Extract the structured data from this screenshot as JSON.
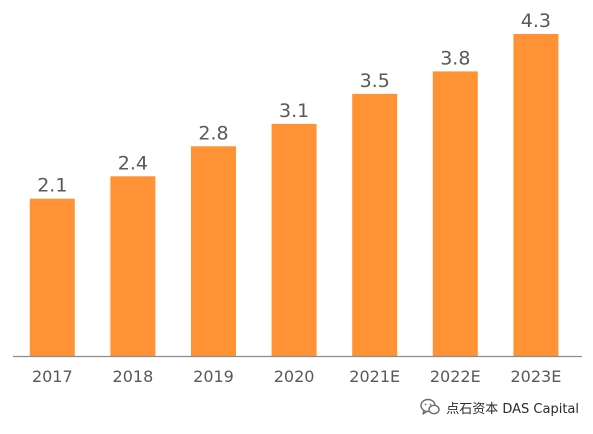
{
  "chart_data": {
    "type": "bar",
    "categories": [
      "2017",
      "2018",
      "2019",
      "2020",
      "2021E",
      "2022E",
      "2023E"
    ],
    "values": [
      2.1,
      2.4,
      2.8,
      3.1,
      3.5,
      3.8,
      4.3
    ],
    "data_labels": [
      "2.1",
      "2.4",
      "2.8",
      "3.1",
      "3.5",
      "3.8",
      "4.3"
    ],
    "title": "",
    "xlabel": "",
    "ylabel": "",
    "ylim": [
      0,
      4.3
    ],
    "grid": false,
    "legend": "none",
    "bar_color": "#FF9234",
    "axis_color": "#8c8c8c",
    "label_color": "#595959"
  },
  "watermark": {
    "icon": "wechat-icon",
    "text": "点石资本 DAS Capital"
  }
}
